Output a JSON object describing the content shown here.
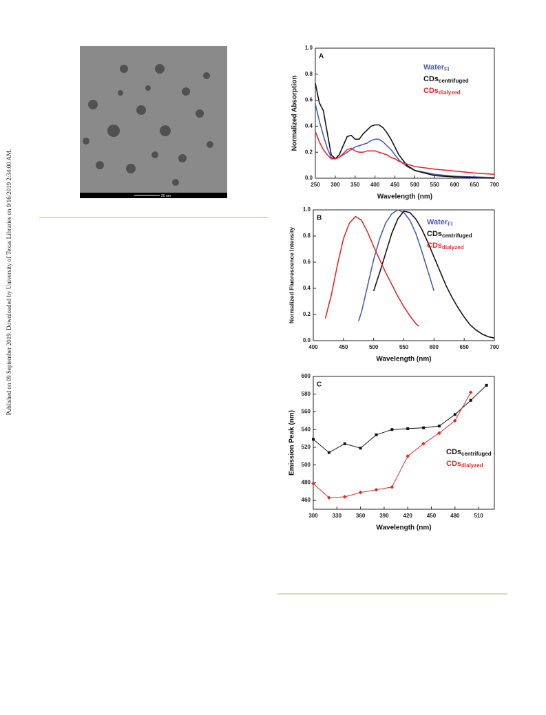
{
  "side_note": "Published on 09 September 2019. Downloaded by University of Texas Libraries on 9/16/2019 2:34:00 AM.",
  "image": {
    "scale_bar": "20 nm"
  },
  "chart_data": [
    {
      "type": "line",
      "panel": "A",
      "xlabel": "Wavelength (nm)",
      "ylabel": "Normalized Absorption",
      "xlim": [
        250,
        700
      ],
      "xticks": [
        250,
        300,
        350,
        400,
        450,
        500,
        550,
        600,
        650,
        700
      ],
      "ylim": [
        0,
        1
      ],
      "yticks": [
        {
          "value": 0,
          "label": "0.0"
        },
        0.2,
        0.4,
        0.6,
        0.8,
        {
          "value": 1,
          "label": "1.0"
        }
      ],
      "series": [
        {
          "name": "Water",
          "name_sub": "FI",
          "color": "#4a5cb4",
          "x": [
            250,
            260,
            270,
            280,
            290,
            300,
            310,
            320,
            330,
            340,
            350,
            360,
            370,
            380,
            390,
            400,
            410,
            420,
            430,
            440,
            450,
            460,
            480,
            500,
            550,
            600,
            650,
            700
          ],
          "values": [
            0.57,
            0.44,
            0.33,
            0.23,
            0.16,
            0.15,
            0.16,
            0.18,
            0.2,
            0.22,
            0.24,
            0.25,
            0.26,
            0.27,
            0.29,
            0.3,
            0.3,
            0.28,
            0.25,
            0.22,
            0.18,
            0.14,
            0.09,
            0.06,
            0.03,
            0.015,
            0.01,
            0.005
          ]
        },
        {
          "name": "CDs",
          "name_sub": "centrifuged",
          "color": "#111111",
          "x": [
            250,
            260,
            270,
            280,
            290,
            300,
            310,
            320,
            330,
            340,
            350,
            360,
            370,
            380,
            390,
            400,
            410,
            420,
            430,
            440,
            450,
            460,
            480,
            500,
            550,
            600,
            650,
            700
          ],
          "values": [
            0.73,
            0.58,
            0.52,
            0.35,
            0.18,
            0.15,
            0.18,
            0.25,
            0.32,
            0.33,
            0.3,
            0.3,
            0.34,
            0.37,
            0.4,
            0.41,
            0.41,
            0.39,
            0.35,
            0.3,
            0.24,
            0.18,
            0.1,
            0.06,
            0.02,
            0.01,
            0.005,
            0
          ]
        },
        {
          "name": "CDs",
          "name_sub": "dialyzed",
          "color": "#e8262a",
          "x": [
            250,
            260,
            270,
            280,
            290,
            300,
            310,
            320,
            330,
            340,
            350,
            360,
            370,
            380,
            390,
            400,
            410,
            420,
            430,
            440,
            450,
            460,
            480,
            500,
            550,
            600,
            650,
            700
          ],
          "values": [
            0.36,
            0.28,
            0.22,
            0.18,
            0.15,
            0.15,
            0.16,
            0.19,
            0.22,
            0.23,
            0.21,
            0.2,
            0.2,
            0.21,
            0.21,
            0.21,
            0.2,
            0.19,
            0.18,
            0.16,
            0.15,
            0.13,
            0.11,
            0.09,
            0.07,
            0.055,
            0.04,
            0.03
          ]
        }
      ]
    },
    {
      "type": "line",
      "panel": "B",
      "xlabel": "Wavelength (nm)",
      "ylabel": "Normalized Fluorescence Intensity",
      "xlim": [
        400,
        700
      ],
      "xticks": [
        400,
        450,
        500,
        550,
        600,
        650,
        700
      ],
      "ylim": [
        0,
        1
      ],
      "yticks": [
        {
          "value": 0,
          "label": "0.0"
        },
        0.2,
        0.4,
        0.6,
        0.8,
        {
          "value": 1,
          "label": "1.0"
        }
      ],
      "series": [
        {
          "name": "Water",
          "name_sub": "FI",
          "color": "#4a5cb4",
          "x": [
            475,
            480,
            490,
            500,
            510,
            520,
            530,
            540,
            550,
            560,
            570,
            580,
            590,
            600
          ],
          "values": [
            0.15,
            0.22,
            0.42,
            0.62,
            0.78,
            0.9,
            0.97,
            1.0,
            0.98,
            0.92,
            0.82,
            0.68,
            0.53,
            0.38
          ]
        },
        {
          "name": "CDs",
          "name_sub": "centrifuged",
          "color": "#111111",
          "x": [
            500,
            510,
            520,
            530,
            540,
            550,
            560,
            570,
            580,
            590,
            600,
            610,
            620,
            630,
            640,
            650,
            660,
            670,
            680,
            690,
            700
          ],
          "values": [
            0.38,
            0.52,
            0.67,
            0.82,
            0.93,
            0.99,
            0.98,
            0.93,
            0.85,
            0.75,
            0.64,
            0.53,
            0.42,
            0.33,
            0.25,
            0.18,
            0.12,
            0.08,
            0.05,
            0.03,
            0.02
          ]
        },
        {
          "name": "CDs",
          "name_sub": "dialyzed",
          "color": "#e8262a",
          "x": [
            420,
            430,
            440,
            450,
            460,
            470,
            480,
            490,
            500,
            510,
            520,
            530,
            540,
            550,
            560,
            570,
            575
          ],
          "values": [
            0.17,
            0.35,
            0.58,
            0.78,
            0.9,
            0.95,
            0.92,
            0.83,
            0.72,
            0.62,
            0.52,
            0.43,
            0.34,
            0.26,
            0.19,
            0.13,
            0.11
          ]
        }
      ]
    },
    {
      "type": "line",
      "markers": true,
      "panel": "C",
      "xlabel": "Wavelength (nm)",
      "ylabel": "Emission Peak (nm)",
      "xlim": [
        300,
        530
      ],
      "xticks": [
        300,
        330,
        360,
        390,
        420,
        450,
        480,
        510
      ],
      "ylim": [
        450,
        600
      ],
      "yticks": [
        460,
        480,
        500,
        520,
        540,
        560,
        580,
        600
      ],
      "series": [
        {
          "name": "CDs",
          "name_sub": "centrifuged",
          "color": "#111111",
          "marker": "square",
          "x": [
            300,
            320,
            340,
            360,
            380,
            400,
            420,
            440,
            460,
            480,
            500,
            520
          ],
          "values": [
            529,
            514,
            524,
            519,
            534,
            540,
            541,
            542,
            544,
            557,
            573,
            590
          ]
        },
        {
          "name": "CDs",
          "name_sub": "dialyzed",
          "color": "#e8262a",
          "marker": "diamond",
          "x": [
            300,
            320,
            340,
            360,
            380,
            400,
            420,
            440,
            460,
            480,
            500
          ],
          "values": [
            479,
            463,
            464,
            469,
            472,
            475,
            510,
            524,
            536,
            550,
            582
          ]
        }
      ]
    }
  ]
}
